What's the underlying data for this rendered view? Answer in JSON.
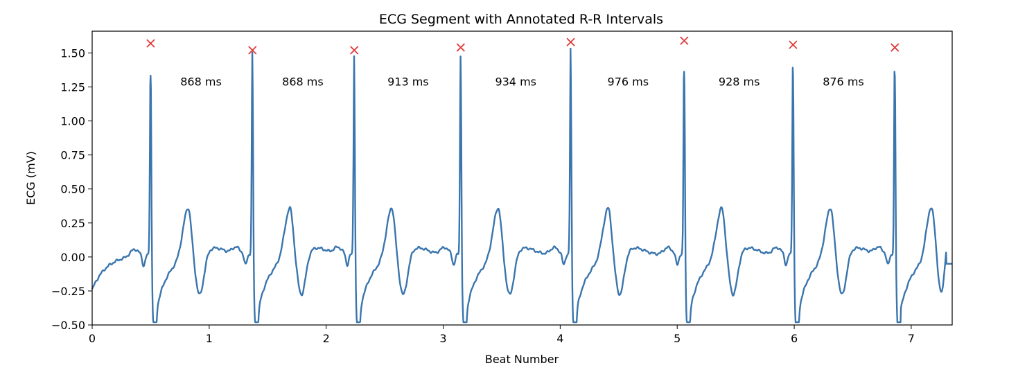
{
  "chart_data": {
    "type": "line",
    "title": "ECG Segment with Annotated R-R Intervals",
    "xlabel": "Beat Number",
    "ylabel": "ECG (mV)",
    "xlim": [
      0,
      7.35
    ],
    "ylim": [
      -0.5,
      1.66
    ],
    "x_ticks": [
      0,
      1,
      2,
      3,
      4,
      5,
      6,
      7
    ],
    "x_tick_labels": [
      "0",
      "1",
      "2",
      "3",
      "4",
      "5",
      "6",
      "7"
    ],
    "y_ticks": [
      -0.5,
      -0.25,
      0.0,
      0.25,
      0.5,
      0.75,
      1.0,
      1.25,
      1.5
    ],
    "y_tick_labels": [
      "−0.50",
      "−0.25",
      "0.00",
      "0.25",
      "0.50",
      "0.75",
      "1.00",
      "1.25",
      "1.50"
    ],
    "grid": false,
    "colors": {
      "line": "#3a75ad",
      "peak_marker": "#e03a3a"
    },
    "r_peaks": [
      {
        "x": 0.5,
        "y": 1.57
      },
      {
        "x": 1.37,
        "y": 1.52
      },
      {
        "x": 2.24,
        "y": 1.52
      },
      {
        "x": 3.15,
        "y": 1.54
      },
      {
        "x": 4.09,
        "y": 1.58
      },
      {
        "x": 5.06,
        "y": 1.59
      },
      {
        "x": 5.99,
        "y": 1.56
      },
      {
        "x": 6.86,
        "y": 1.54
      }
    ],
    "rr_intervals": [
      {
        "label": "868 ms",
        "x": 0.93,
        "y": 1.29
      },
      {
        "label": "868 ms",
        "x": 1.8,
        "y": 1.29
      },
      {
        "label": "913 ms",
        "x": 2.7,
        "y": 1.29
      },
      {
        "label": "934 ms",
        "x": 3.62,
        "y": 1.29
      },
      {
        "label": "976 ms",
        "x": 4.58,
        "y": 1.29
      },
      {
        "label": "928 ms",
        "x": 5.53,
        "y": 1.29
      },
      {
        "label": "876 ms",
        "x": 6.42,
        "y": 1.29
      }
    ],
    "trailing_t_wave": {
      "x": 7.17,
      "y": 0.26,
      "trough_x": 7.25,
      "trough_y": -0.29
    },
    "series": [
      {
        "baseline_start_y": -0.24,
        "baseline_end_y": -0.05,
        "pre_r_bump_y": 0.07,
        "s_wave_y": -0.41,
        "t_wave_y": 0.25,
        "post_t_trough_y": -0.28
      }
    ]
  }
}
